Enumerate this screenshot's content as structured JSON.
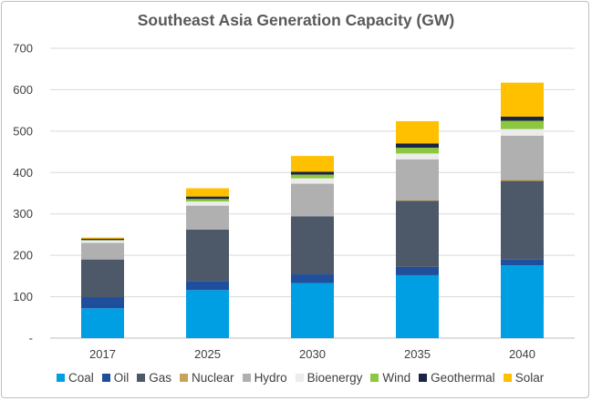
{
  "chart_data": {
    "type": "bar",
    "stacked": true,
    "title": "Southeast Asia Generation Capacity (GW)",
    "categories": [
      "2017",
      "2025",
      "2030",
      "2035",
      "2040"
    ],
    "ylim": [
      0,
      700
    ],
    "yticks": [
      0,
      100,
      200,
      300,
      400,
      500,
      600,
      700
    ],
    "ytick_labels": [
      "-",
      "100",
      "200",
      "300",
      "400",
      "500",
      "600",
      "700"
    ],
    "grid": true,
    "legend_position": "bottom",
    "series": [
      {
        "name": "Coal",
        "color": "#009fe3",
        "values": [
          72,
          116,
          133,
          152,
          176
        ]
      },
      {
        "name": "Oil",
        "color": "#1f4e9c",
        "values": [
          27,
          22,
          21,
          20,
          14
        ]
      },
      {
        "name": "Gas",
        "color": "#4d5868",
        "values": [
          91,
          124,
          140,
          160,
          190
        ]
      },
      {
        "name": "Nuclear",
        "color": "#c7a35a",
        "values": [
          0,
          0,
          0,
          2,
          3
        ]
      },
      {
        "name": "Hydro",
        "color": "#b0b0b0",
        "values": [
          40,
          58,
          79,
          98,
          106
        ]
      },
      {
        "name": "Bioenergy",
        "color": "#ececec",
        "values": [
          6,
          10,
          13,
          14,
          16
        ]
      },
      {
        "name": "Wind",
        "color": "#8dc63f",
        "values": [
          1,
          6,
          9,
          14,
          20
        ]
      },
      {
        "name": "Geothermal",
        "color": "#1a2544",
        "values": [
          3,
          6,
          7,
          10,
          10
        ]
      },
      {
        "name": "Solar",
        "color": "#ffc000",
        "values": [
          3,
          20,
          38,
          54,
          82
        ]
      }
    ]
  }
}
